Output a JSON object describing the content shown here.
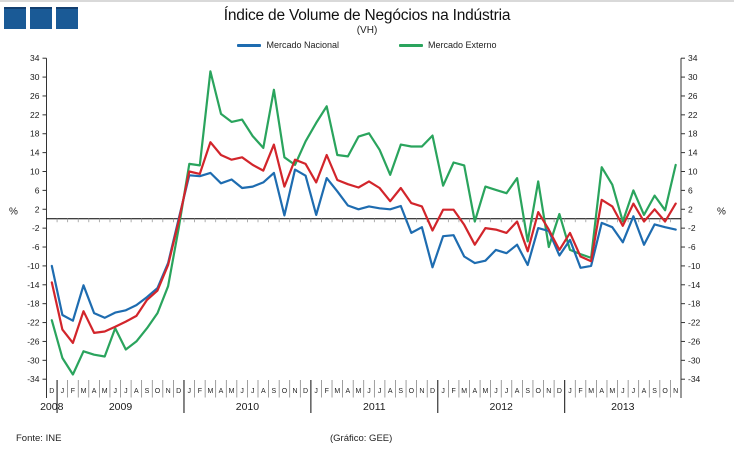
{
  "logo": {
    "square_count": 3,
    "color": "#1A5A96"
  },
  "header": {
    "title": "Índice de Volume de Negócios na Indústria",
    "subtitle": "(VH)"
  },
  "legend": [
    {
      "label": "Mercado Nacional",
      "color": "#1E6CB0"
    },
    {
      "label": "Mercado Externo",
      "color": "#2AA45D"
    }
  ],
  "footer": {
    "source": "Fonte: INE",
    "credit": "(Gráfico:  GEE)"
  },
  "chart_data": {
    "type": "line",
    "title": "Índice de Volume de Negócios na Indústria",
    "subtitle": "(VH)",
    "ylabel_left": "%",
    "ylabel_right": "%",
    "ylim": [
      -34,
      34
    ],
    "ytick_step": 4,
    "grid": false,
    "legend_position": "top-center",
    "x_month_labels": [
      "D",
      "J",
      "F",
      "M",
      "A",
      "M",
      "J",
      "J",
      "A",
      "S",
      "O",
      "N",
      "D",
      "J",
      "F",
      "M",
      "A",
      "M",
      "J",
      "J",
      "A",
      "S",
      "O",
      "N",
      "D",
      "J",
      "F",
      "M",
      "A",
      "M",
      "J",
      "J",
      "A",
      "S",
      "O",
      "N",
      "D",
      "J",
      "F",
      "M",
      "A",
      "M",
      "J",
      "J",
      "A",
      "S",
      "O",
      "N",
      "D",
      "J",
      "F",
      "M",
      "A",
      "M",
      "J",
      "J",
      "A",
      "S",
      "O",
      "N"
    ],
    "x_years": [
      {
        "label": "2008",
        "start": 0,
        "count": 1
      },
      {
        "label": "2009",
        "start": 1,
        "count": 12
      },
      {
        "label": "2010",
        "start": 13,
        "count": 12
      },
      {
        "label": "2011",
        "start": 25,
        "count": 12
      },
      {
        "label": "2012",
        "start": 37,
        "count": 12
      },
      {
        "label": "2013",
        "start": 49,
        "count": 11
      }
    ],
    "series": [
      {
        "name": "Mercado Externo",
        "color": "#2AA45D",
        "values": [
          -21.5,
          -29.5,
          -33,
          -28.1,
          -28.8,
          -29.2,
          -23.2,
          -27.7,
          -26,
          -23.2,
          -20,
          -14.3,
          -2,
          11.6,
          11.3,
          31.2,
          22.2,
          20.5,
          21,
          17.5,
          15,
          27.3,
          13,
          11.4,
          16.4,
          20.3,
          23.8,
          13.5,
          13.2,
          17.4,
          18.1,
          14.6,
          9.3,
          15.7,
          15.3,
          15.3,
          17.6,
          7,
          11.9,
          11.3,
          -0.6,
          6.8,
          6.1,
          5.4,
          8.6,
          -4.8,
          7.9,
          -6,
          1,
          -6.6,
          -7.5,
          -8.3,
          10.9,
          7.2,
          -0.6,
          6,
          0.8,
          4.9,
          1.8,
          11.4
        ]
      },
      {
        "name": "Mercado Nacional",
        "color": "#1E6CB0",
        "values": [
          -10,
          -20.4,
          -21.6,
          -14.1,
          -20,
          -21,
          -19.9,
          -19.4,
          -18.3,
          -16.6,
          -14.7,
          -9.4,
          0,
          9.2,
          9,
          9.7,
          7.5,
          8.3,
          6.5,
          6.8,
          7.7,
          9.7,
          0.7,
          10.4,
          9.1,
          0.8,
          8.6,
          5.8,
          2.8,
          2,
          2.6,
          2.2,
          2,
          2.7,
          -3,
          -1.8,
          -10.3,
          -3.7,
          -3.5,
          -8,
          -9.4,
          -8.9,
          -6.6,
          -7.3,
          -5.5,
          -9.8,
          -2,
          -2.6,
          -7.8,
          -4.5,
          -10.4,
          -10,
          -0.9,
          -1.8,
          -5,
          0.5,
          -5.5,
          -1.2,
          -1.8,
          -2.3
        ]
      },
      {
        "name": "",
        "color": "#D2252B",
        "values": [
          -13.5,
          -23.5,
          -26.3,
          -19.6,
          -24.2,
          -23.9,
          -22.9,
          -21.8,
          -20.6,
          -17.2,
          -15.2,
          -9.8,
          -0.5,
          10,
          9.5,
          16.2,
          13.5,
          12.5,
          13,
          11.4,
          10.2,
          15.7,
          6.8,
          12.5,
          11.6,
          7.7,
          13.5,
          8.2,
          7.3,
          6.6,
          7.9,
          6.5,
          3.7,
          6.5,
          3.3,
          2.6,
          -2.5,
          1.9,
          1.9,
          -1.3,
          -5.5,
          -2,
          -2.3,
          -3,
          -0.6,
          -6.9,
          1.4,
          -2.3,
          -6.6,
          -3,
          -8,
          -9,
          4,
          2.6,
          -1.5,
          3.2,
          -0.6,
          2,
          -0.6,
          3.2
        ]
      }
    ]
  }
}
